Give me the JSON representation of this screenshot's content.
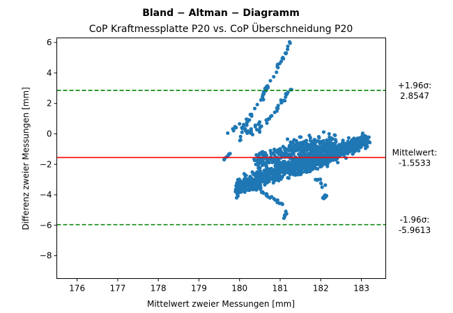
{
  "chart_data": {
    "type": "scatter",
    "title": "Bland − Altman − Diagramm",
    "subtitle": "CoP Kraftmessplatte P20 vs. CoP Überschneidung P20",
    "xlabel": "Mittelwert zweier Messungen [mm]",
    "ylabel": "Differenz zweier Messungen [mm]",
    "xlim": [
      175.5,
      183.6
    ],
    "ylim": [
      -9.5,
      6.3
    ],
    "xticks": [
      176,
      177,
      178,
      179,
      180,
      181,
      182,
      183
    ],
    "yticks": [
      -8,
      -6,
      -4,
      -2,
      0,
      2,
      4,
      6
    ],
    "grid": false,
    "colors": {
      "points": "#1f77b4",
      "mean_line": "#ff0000",
      "limit_lines": "#008000"
    },
    "reference_lines": [
      {
        "name": "mean",
        "y": -1.5533,
        "style": "solid",
        "label": [
          "Mittelwert:",
          "-1.5533"
        ]
      },
      {
        "name": "upper",
        "y": 2.8547,
        "style": "dashed",
        "label": [
          "+1.96σ:",
          "2.8547"
        ]
      },
      {
        "name": "lower",
        "y": -5.9613,
        "style": "dashed",
        "label": [
          "-1.96σ:",
          "-5.9613"
        ]
      }
    ],
    "clusters": [
      {
        "x_range": [
          179.9,
          182.0
        ],
        "y_center_at_start": -3.6,
        "slope": 1.05,
        "y_spread": 0.55,
        "count": 520
      },
      {
        "x_range": [
          181.4,
          183.1
        ],
        "y_center_at_start": -2.4,
        "slope": 1.15,
        "y_spread": 0.45,
        "count": 420
      },
      {
        "x_range": [
          180.4,
          181.8
        ],
        "y_center_at_start": -1.8,
        "slope": 0.6,
        "y_spread": 0.7,
        "count": 220
      },
      {
        "x_range": [
          181.2,
          182.4
        ],
        "y_center_at_start": -0.9,
        "slope": 0.3,
        "y_spread": 0.6,
        "count": 140
      },
      {
        "x_range": [
          181.9,
          183.2
        ],
        "y_center_at_start": -1.2,
        "slope": 0.55,
        "y_spread": 0.35,
        "count": 120
      }
    ],
    "trails": [
      {
        "points": [
          [
            180.05,
            0.2
          ],
          [
            180.5,
            2.2
          ],
          [
            180.9,
            4.2
          ],
          [
            181.3,
            6.2
          ]
        ],
        "count": 55
      },
      {
        "points": [
          [
            180.4,
            0.1
          ],
          [
            180.9,
            1.6
          ],
          [
            181.3,
            3.1
          ]
        ],
        "count": 30
      },
      {
        "points": [
          [
            179.6,
            -1.8
          ],
          [
            180.0,
            -0.4
          ],
          [
            180.5,
            0.8
          ]
        ],
        "count": 22
      },
      {
        "points": [
          [
            179.7,
            0.1
          ],
          [
            180.05,
            0.6
          ],
          [
            180.4,
            -0.2
          ]
        ],
        "count": 14
      },
      {
        "points": [
          [
            181.9,
            -3.0
          ],
          [
            182.2,
            -3.9
          ],
          [
            182.05,
            -4.25
          ]
        ],
        "count": 16
      },
      {
        "points": [
          [
            181.0,
            -4.4
          ],
          [
            181.15,
            -5.1
          ],
          [
            181.1,
            -5.45
          ]
        ],
        "count": 10
      },
      {
        "points": [
          [
            180.3,
            -3.2
          ],
          [
            180.7,
            -4.1
          ],
          [
            181.0,
            -4.5
          ]
        ],
        "count": 30
      }
    ]
  }
}
